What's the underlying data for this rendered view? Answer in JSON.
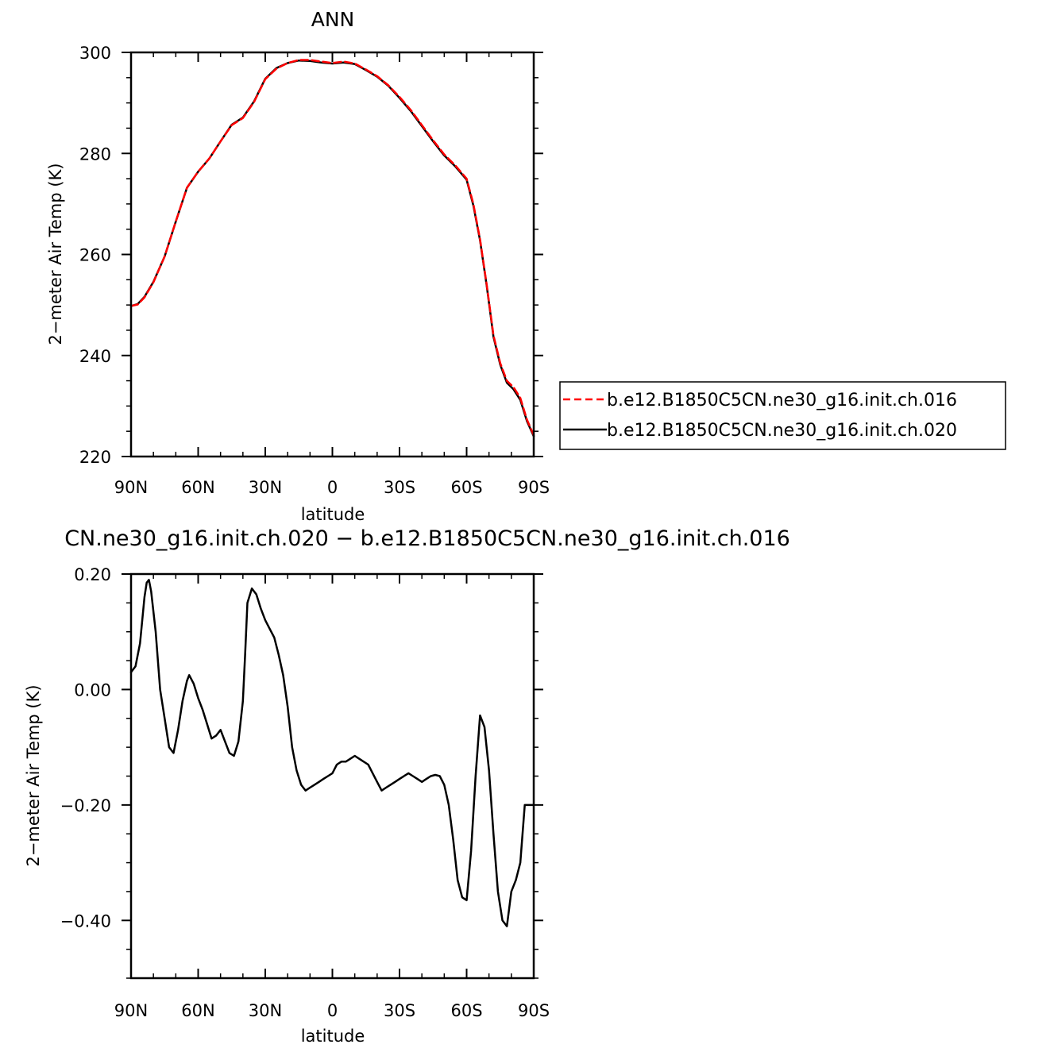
{
  "chart_data": [
    {
      "type": "line",
      "title": "ANN",
      "xlabel": "latitude",
      "ylabel": "2−meter Air Temp (K)",
      "xlim": [
        90,
        -90
      ],
      "ylim": [
        220,
        300
      ],
      "x_ticks": [
        {
          "v": 90,
          "label": "90N"
        },
        {
          "v": 60,
          "label": "60N"
        },
        {
          "v": 30,
          "label": "30N"
        },
        {
          "v": 0,
          "label": "0"
        },
        {
          "v": -30,
          "label": "30S"
        },
        {
          "v": -60,
          "label": "60S"
        },
        {
          "v": -90,
          "label": "90S"
        }
      ],
      "y_ticks": [
        {
          "v": 220,
          "label": "220"
        },
        {
          "v": 240,
          "label": "240"
        },
        {
          "v": 260,
          "label": "260"
        },
        {
          "v": 280,
          "label": "280"
        },
        {
          "v": 300,
          "label": "300"
        }
      ],
      "legend": {
        "placement": "right",
        "entries": [
          {
            "label": "b.e12.B1850C5CN.ne30_g16.init.ch.016",
            "color": "#ff0000",
            "dash": true
          },
          {
            "label": "b.e12.B1850C5CN.ne30_g16.init.ch.020",
            "color": "#000000",
            "dash": false
          }
        ]
      },
      "series": [
        {
          "name": "b.e12.B1850C5CN.ne30_g16.init.ch.016",
          "color": "#ff0000",
          "dash": true,
          "x": [
            90,
            87,
            84,
            80,
            75,
            70,
            65,
            60,
            55,
            50,
            45,
            40,
            35,
            30,
            25,
            20,
            15,
            10,
            5,
            0,
            -5,
            -10,
            -15,
            -20,
            -25,
            -30,
            -35,
            -40,
            -45,
            -50,
            -55,
            -60,
            -63,
            -66,
            -69,
            -72,
            -75,
            -78,
            -81,
            -84,
            -87,
            -90
          ],
          "y": [
            249.8,
            250.1,
            251.5,
            254.5,
            259.6,
            266.5,
            273.2,
            276.4,
            279.0,
            282.4,
            285.6,
            287.0,
            290.2,
            294.7,
            296.8,
            297.9,
            298.5,
            298.5,
            298.2,
            297.9,
            298.2,
            297.8,
            296.6,
            295.3,
            293.5,
            291.2,
            288.6,
            285.6,
            282.6,
            279.8,
            277.6,
            275.0,
            270.0,
            263.0,
            254.0,
            244.0,
            238.5,
            235.0,
            233.7,
            231.6,
            227.3,
            224.2
          ]
        },
        {
          "name": "b.e12.B1850C5CN.ne30_g16.init.ch.020",
          "color": "#000000",
          "dash": false,
          "x": [
            90,
            87,
            84,
            80,
            75,
            70,
            65,
            60,
            55,
            50,
            45,
            40,
            35,
            30,
            25,
            20,
            15,
            10,
            5,
            0,
            -5,
            -10,
            -15,
            -20,
            -25,
            -30,
            -35,
            -40,
            -45,
            -50,
            -55,
            -60,
            -63,
            -66,
            -69,
            -72,
            -75,
            -78,
            -81,
            -84,
            -87,
            -90
          ],
          "y": [
            249.8,
            250.2,
            251.6,
            254.6,
            259.6,
            266.5,
            273.2,
            276.4,
            279.0,
            282.4,
            285.7,
            287.1,
            290.3,
            294.8,
            296.9,
            297.9,
            298.4,
            298.3,
            298.0,
            297.8,
            298.0,
            297.7,
            296.5,
            295.2,
            293.4,
            291.0,
            288.4,
            285.4,
            282.4,
            279.6,
            277.4,
            274.8,
            269.7,
            262.8,
            253.8,
            243.7,
            238.2,
            234.6,
            233.3,
            231.2,
            227.0,
            224.0
          ]
        }
      ]
    },
    {
      "type": "line",
      "title": "CN.ne30_g16.init.ch.020 − b.e12.B1850C5CN.ne30_g16.init.ch.016",
      "xlabel": "latitude",
      "ylabel": "2−meter Air Temp (K)",
      "xlim": [
        90,
        -90
      ],
      "ylim": [
        -0.5,
        0.2
      ],
      "x_ticks": [
        {
          "v": 90,
          "label": "90N"
        },
        {
          "v": 60,
          "label": "60N"
        },
        {
          "v": 30,
          "label": "30N"
        },
        {
          "v": 0,
          "label": "0"
        },
        {
          "v": -30,
          "label": "30S"
        },
        {
          "v": -60,
          "label": "60S"
        },
        {
          "v": -90,
          "label": "90S"
        }
      ],
      "y_ticks": [
        {
          "v": 0.2,
          "label": "0.20"
        },
        {
          "v": 0.0,
          "label": "0.00"
        },
        {
          "v": -0.2,
          "label": "−0.20"
        },
        {
          "v": -0.4,
          "label": "−0.40"
        }
      ],
      "series": [
        {
          "color": "#000000",
          "dash": false,
          "x": [
            90,
            88,
            86,
            84,
            83,
            82,
            81,
            79,
            77,
            75,
            73,
            71,
            69,
            67,
            65,
            64,
            62,
            60,
            58,
            56,
            54,
            52,
            50,
            48,
            46,
            44,
            42,
            40,
            39,
            38,
            36,
            34,
            32,
            30,
            28,
            26,
            24,
            22,
            20,
            18,
            16,
            14,
            12,
            10,
            8,
            6,
            4,
            2,
            0,
            -2,
            -4,
            -6,
            -8,
            -10,
            -12,
            -14,
            -16,
            -18,
            -20,
            -22,
            -24,
            -26,
            -28,
            -30,
            -32,
            -34,
            -36,
            -38,
            -40,
            -42,
            -44,
            -46,
            -48,
            -50,
            -52,
            -54,
            -56,
            -58,
            -60,
            -62,
            -64,
            -66,
            -68,
            -70,
            -72,
            -74,
            -76,
            -78,
            -80,
            -82,
            -84,
            -86,
            -88,
            -90
          ],
          "y": [
            0.03,
            0.04,
            0.08,
            0.16,
            0.185,
            0.19,
            0.17,
            0.1,
            0.0,
            -0.05,
            -0.1,
            -0.11,
            -0.07,
            -0.02,
            0.015,
            0.025,
            0.01,
            -0.015,
            -0.035,
            -0.06,
            -0.085,
            -0.08,
            -0.07,
            -0.09,
            -0.11,
            -0.115,
            -0.09,
            -0.02,
            0.06,
            0.15,
            0.175,
            0.165,
            0.14,
            0.12,
            0.105,
            0.09,
            0.06,
            0.025,
            -0.03,
            -0.1,
            -0.14,
            -0.165,
            -0.175,
            -0.17,
            -0.165,
            -0.16,
            -0.155,
            -0.15,
            -0.145,
            -0.13,
            -0.125,
            -0.125,
            -0.12,
            -0.115,
            -0.12,
            -0.125,
            -0.13,
            -0.145,
            -0.16,
            -0.175,
            -0.17,
            -0.165,
            -0.16,
            -0.155,
            -0.15,
            -0.145,
            -0.15,
            -0.155,
            -0.16,
            -0.155,
            -0.15,
            -0.148,
            -0.15,
            -0.165,
            -0.2,
            -0.26,
            -0.33,
            -0.36,
            -0.365,
            -0.28,
            -0.15,
            -0.045,
            -0.065,
            -0.14,
            -0.25,
            -0.35,
            -0.4,
            -0.41,
            -0.35,
            -0.33,
            -0.3,
            -0.2,
            -0.2,
            -0.2
          ]
        }
      ]
    }
  ]
}
